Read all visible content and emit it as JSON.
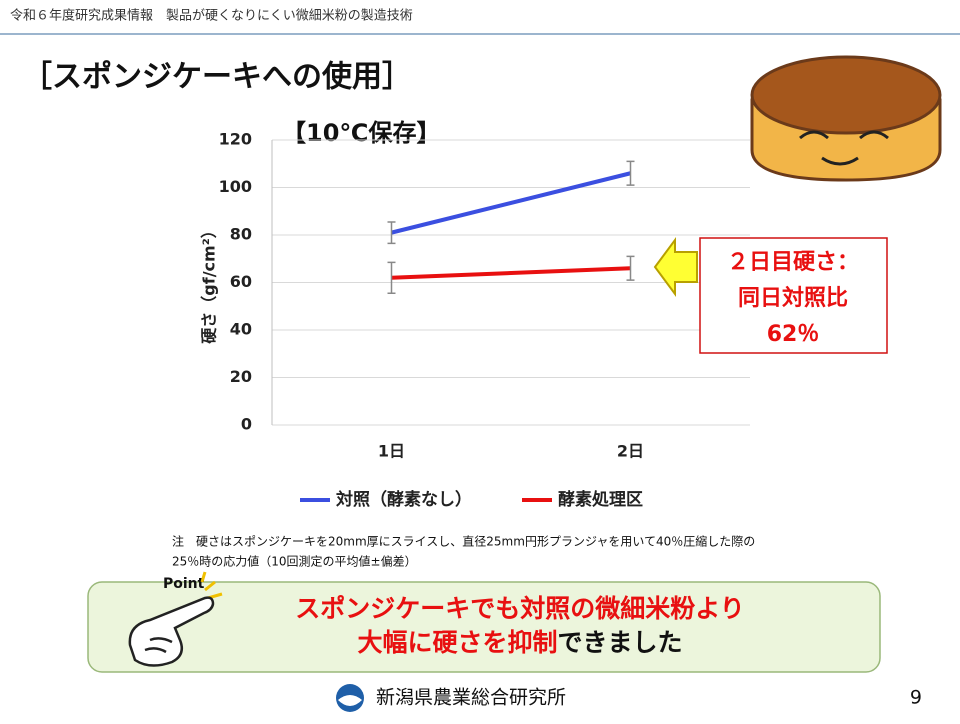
{
  "header": "令和６年度研究成果情報　製品が硬くなりにくい微細米粉の製造技術",
  "slide_title": "［スポンジケーキへの使用］",
  "chart_data": {
    "type": "line",
    "title": "【10℃保存】",
    "y_label": "硬さ（gf/cm²）",
    "categories": [
      "1日",
      "2日"
    ],
    "series": [
      {
        "name": "対照（酵素なし）",
        "color": "#3b4fe0",
        "values": [
          81,
          106
        ],
        "errors": [
          4.5,
          5
        ]
      },
      {
        "name": "酵素処理区",
        "color": "#e81010",
        "values": [
          62,
          66
        ],
        "errors": [
          6.5,
          5
        ]
      }
    ],
    "ylim": [
      0,
      120
    ],
    "yticks": [
      0,
      20,
      40,
      60,
      80,
      100,
      120
    ],
    "grid": true,
    "legend": "bottom",
    "annotation": [
      "２日目硬さ：",
      "同日対照比",
      "62％"
    ]
  },
  "note": [
    "注　硬さはスポンジケーキを20mm厚にスライスし、直径25mm円形プランジャを用いて40％圧縮した際の",
    "25％時の応力値（10回測定の平均値±偏差）"
  ],
  "point": {
    "badge": "Point",
    "line1": "スポンジケーキでも対照の微細米粉より",
    "line2_emphasis": "大幅に硬さを抑制",
    "line2_rest": "できました"
  },
  "footer": {
    "organization": "新潟県農業総合研究所",
    "page": "9"
  }
}
